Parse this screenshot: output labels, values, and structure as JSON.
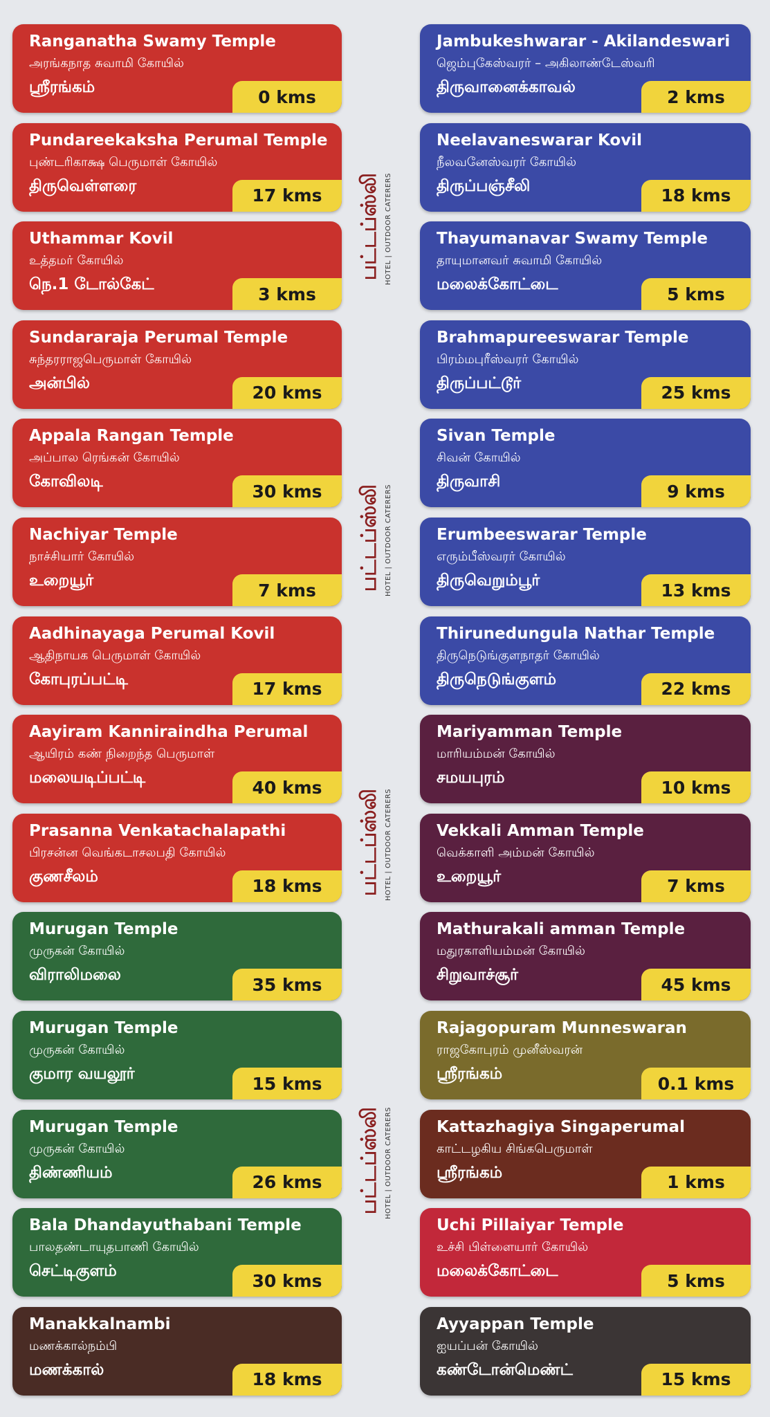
{
  "logo": {
    "brand": "பட்டப்ஸ்லி",
    "tagline": "HOTEL | OUTDOOR CATERERS"
  },
  "columns": [
    {
      "cards": [
        {
          "name": "Ranganatha Swamy Temple",
          "tamil": "அரங்கநாத சுவாமி கோயில்",
          "place": "ஸ்ரீரங்கம்",
          "distance": "0 kms",
          "color": "#c9322d"
        },
        {
          "name": "Pundareekaksha Perumal Temple",
          "tamil": "புண்டரிகாக்ஷ பெருமாள் கோயில்",
          "place": "திருவெள்ளரை",
          "distance": "17 kms",
          "color": "#c9322d"
        },
        {
          "name": "Uthammar Kovil",
          "tamil": "உத்தமர் கோயில்",
          "place": "நெ.1 டோல்கேட்",
          "distance": "3 kms",
          "color": "#c9322d"
        },
        {
          "name": "Sundararaja Perumal Temple",
          "tamil": "சுந்தரராஜபெருமாள் கோயில்",
          "place": "அன்பில்",
          "distance": "20 kms",
          "color": "#c9322d"
        },
        {
          "name": "Appala Rangan Temple",
          "tamil": "அப்பால ரெங்கன் கோயில்",
          "place": "கோவிலடி",
          "distance": "30 kms",
          "color": "#c9322d"
        },
        {
          "name": "Nachiyar Temple",
          "tamil": "நாச்சியார் கோயில்",
          "place": "உறையூர்",
          "distance": "7 kms",
          "color": "#c9322d"
        },
        {
          "name": "Aadhinayaga Perumal Kovil",
          "tamil": "ஆதிநாயக பெருமாள் கோயில்",
          "place": "கோபுரப்பட்டி",
          "distance": "17 kms",
          "color": "#c9322d"
        },
        {
          "name": "Aayiram Kanniraindha Perumal",
          "tamil": "ஆயிரம் கண் நிறைந்த பெருமாள்",
          "place": "மலையடிப்பட்டி",
          "distance": "40 kms",
          "color": "#c9322d"
        },
        {
          "name": "Prasanna Venkatachalapathi",
          "tamil": "பிரசன்ன வெங்கடாசலபதி கோயில்",
          "place": "குணசீலம்",
          "distance": "18 kms",
          "color": "#c9322d"
        },
        {
          "name": "Murugan Temple",
          "tamil": "முருகன் கோயில்",
          "place": "விராலிமலை",
          "distance": "35 kms",
          "color": "#2f6a3b"
        },
        {
          "name": "Murugan Temple",
          "tamil": "முருகன் கோயில்",
          "place": "குமார வயலூர்",
          "distance": "15 kms",
          "color": "#2f6a3b"
        },
        {
          "name": "Murugan Temple",
          "tamil": "முருகன் கோயில்",
          "place": "திண்ணியம்",
          "distance": "26 kms",
          "color": "#2f6a3b"
        },
        {
          "name": "Bala Dhandayuthabani Temple",
          "tamil": "பாலதண்டாயுதபாணி கோயில்",
          "place": "செட்டிகுளம்",
          "distance": "30 kms",
          "color": "#2f6a3b"
        },
        {
          "name": "Manakkalnambi",
          "tamil": "மணக்கால்நம்பி",
          "place": "மணக்கால்",
          "distance": "18 kms",
          "color": "#4a2c25"
        }
      ]
    },
    {
      "cards": [
        {
          "name": "Jambukeshwarar - Akilandeswari",
          "tamil": "ஜெம்புகேஸ்வரர் – அகிலாண்டேஸ்வரி",
          "place": "திருவானைக்காவல்",
          "distance": "2 kms",
          "color": "#3b4aa6"
        },
        {
          "name": "Neelavaneswarar Kovil",
          "tamil": "நீலவனேஸ்வரர் கோயில்",
          "place": "திருப்பஞ்சீலி",
          "distance": "18 kms",
          "color": "#3b4aa6"
        },
        {
          "name": "Thayumanavar Swamy Temple",
          "tamil": "தாயுமானவர் சுவாமி கோயில்",
          "place": "மலைக்கோட்டை",
          "distance": "5 kms",
          "color": "#3b4aa6"
        },
        {
          "name": "Brahmapureeswarar Temple",
          "tamil": "பிரம்மபுரீஸ்வரர் கோயில்",
          "place": "திருப்பட்டூர்",
          "distance": "25 kms",
          "color": "#3b4aa6"
        },
        {
          "name": "Sivan Temple",
          "tamil": "சிவன் கோயில்",
          "place": "திருவாசி",
          "distance": "9 kms",
          "color": "#3b4aa6"
        },
        {
          "name": "Erumbeeswarar Temple",
          "tamil": "எரும்பீஸ்வரர் கோயில்",
          "place": "திருவெறும்பூர்",
          "distance": "13 kms",
          "color": "#3b4aa6"
        },
        {
          "name": "Thirunedungula Nathar Temple",
          "tamil": "திருநெடுங்குளநாதர் கோயில்",
          "place": "திருநெடுங்குளம்",
          "distance": "22 kms",
          "color": "#3b4aa6"
        },
        {
          "name": "Mariyamman Temple",
          "tamil": "மாரியம்மன் கோயில்",
          "place": "சமயபுரம்",
          "distance": "10 kms",
          "color": "#5a2040"
        },
        {
          "name": "Vekkali Amman Temple",
          "tamil": "வெக்காளி அம்மன் கோயில்",
          "place": "உறையூர்",
          "distance": "7 kms",
          "color": "#5a2040"
        },
        {
          "name": "Mathurakali amman Temple",
          "tamil": "மதுரகாளியம்மன் கோயில்",
          "place": "சிறுவாச்சூர்",
          "distance": "45 kms",
          "color": "#5a2040"
        },
        {
          "name": "Rajagopuram Munneswaran",
          "tamil": "ராஜகோபுரம் முனீஸ்வரன்",
          "place": "ஸ்ரீரங்கம்",
          "distance": "0.1 kms",
          "color": "#7a6b2c"
        },
        {
          "name": "Kattazhagiya Singaperumal",
          "tamil": "காட்டழகிய சிங்கபெருமாள்",
          "place": "ஸ்ரீரங்கம்",
          "distance": "1 kms",
          "color": "#6b2c1f"
        },
        {
          "name": "Uchi Pillaiyar Temple",
          "tamil": "உச்சி பிள்ளையார் கோயில்",
          "place": "மலைக்கோட்டை",
          "distance": "5 kms",
          "color": "#c2283a"
        },
        {
          "name": "Ayyappan Temple",
          "tamil": "ஐயப்பன் கோயில்",
          "place": "கண்டோன்மெண்ட்",
          "distance": "15 kms",
          "color": "#3b3535"
        }
      ]
    }
  ]
}
